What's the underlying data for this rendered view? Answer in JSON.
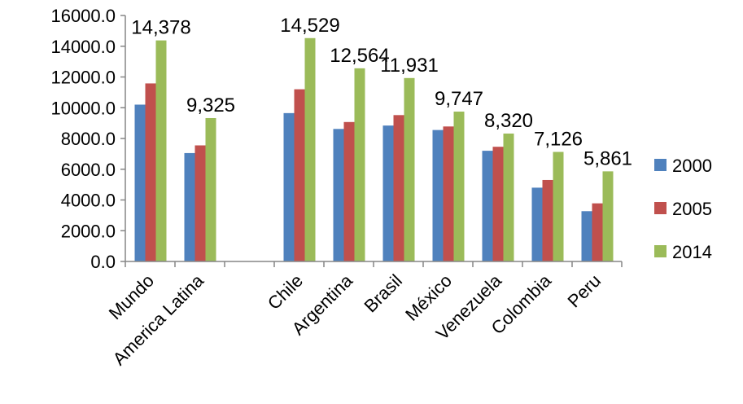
{
  "chart_data": {
    "type": "bar",
    "categories": [
      "Mundo",
      "America Latina",
      "",
      "Chile",
      "Argentina",
      "Brasil",
      "México",
      "Venezuela",
      "Colombia",
      "Peru"
    ],
    "series": [
      {
        "name": "2000",
        "color": "#4F81BD",
        "values": [
          10200,
          7050,
          null,
          9650,
          8620,
          8840,
          8550,
          7200,
          4800,
          3270
        ]
      },
      {
        "name": "2005",
        "color": "#C0504D",
        "values": [
          11580,
          7550,
          null,
          11200,
          9070,
          9520,
          8780,
          7460,
          5300,
          3780
        ]
      },
      {
        "name": "2014",
        "color": "#9BBB59",
        "values": [
          14378,
          9325,
          null,
          14529,
          12564,
          11931,
          9747,
          8320,
          7126,
          5861
        ]
      }
    ],
    "data_labels": [
      "14,378",
      "9,325",
      "",
      "14,529",
      "12,564",
      "11,931",
      "9,747",
      "8,320",
      "7,126",
      "5,861"
    ],
    "y_ticks": [
      "0.0",
      "2000.0",
      "4000.0",
      "6000.0",
      "8000.0",
      "10000.0",
      "12000.0",
      "14000.0",
      "16000.0"
    ],
    "ylim": [
      0,
      16000
    ],
    "grid": false,
    "legend_position": "right",
    "title": "",
    "xlabel": "",
    "ylabel": ""
  }
}
